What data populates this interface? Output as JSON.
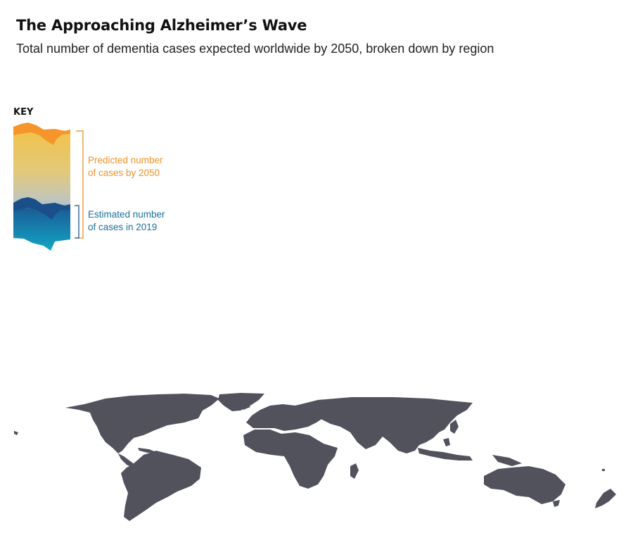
{
  "header": {
    "title": "The Approaching Alzheimer’s Wave",
    "subtitle": "Total number of dementia cases expected worldwide by 2050, broken down by region"
  },
  "key": {
    "label": "KEY",
    "predicted": {
      "line1": "Predicted number",
      "line2": "of cases by 2050",
      "color": "#f0922a"
    },
    "estimated": {
      "line1": "Estimated number",
      "line2": "of cases in 2019",
      "color": "#1c6f9a"
    }
  },
  "map": {
    "land_color": "#51525c"
  }
}
